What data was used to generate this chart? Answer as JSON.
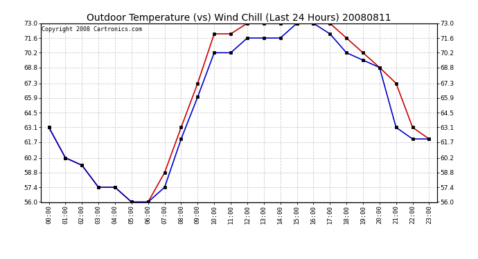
{
  "title": "Outdoor Temperature (vs) Wind Chill (Last 24 Hours) 20080811",
  "copyright": "Copyright 2008 Cartronics.com",
  "x_labels": [
    "00:00",
    "01:00",
    "02:00",
    "03:00",
    "04:00",
    "05:00",
    "06:00",
    "07:00",
    "08:00",
    "09:00",
    "10:00",
    "11:00",
    "12:00",
    "13:00",
    "14:00",
    "15:00",
    "16:00",
    "17:00",
    "18:00",
    "19:00",
    "20:00",
    "21:00",
    "22:00",
    "23:00"
  ],
  "temp_red": [
    63.1,
    60.2,
    59.5,
    57.4,
    57.4,
    56.0,
    56.0,
    58.8,
    63.1,
    67.3,
    72.0,
    72.0,
    73.0,
    73.0,
    73.0,
    73.0,
    73.0,
    73.0,
    71.6,
    70.2,
    68.8,
    67.3,
    63.1,
    62.0
  ],
  "temp_blue": [
    63.1,
    60.2,
    59.5,
    57.4,
    57.4,
    56.0,
    56.0,
    57.4,
    62.0,
    66.0,
    70.2,
    70.2,
    71.6,
    71.6,
    71.6,
    73.0,
    73.0,
    72.0,
    70.2,
    69.5,
    68.8,
    63.1,
    62.0,
    62.0
  ],
  "ylim_min": 56.0,
  "ylim_max": 73.0,
  "yticks": [
    56.0,
    57.4,
    58.8,
    60.2,
    61.7,
    63.1,
    64.5,
    65.9,
    67.3,
    68.8,
    70.2,
    71.6,
    73.0
  ],
  "ytick_labels": [
    "56.0",
    "57.4",
    "58.8",
    "60.2",
    "61.7",
    "63.1",
    "64.5",
    "65.9",
    "67.3",
    "68.8",
    "70.2",
    "71.6",
    "73.0"
  ],
  "red_color": "#cc0000",
  "blue_color": "#0000cc",
  "bg_color": "#ffffff",
  "grid_color": "#cccccc",
  "title_fontsize": 10,
  "copyright_fontsize": 6,
  "tick_fontsize": 6.5
}
